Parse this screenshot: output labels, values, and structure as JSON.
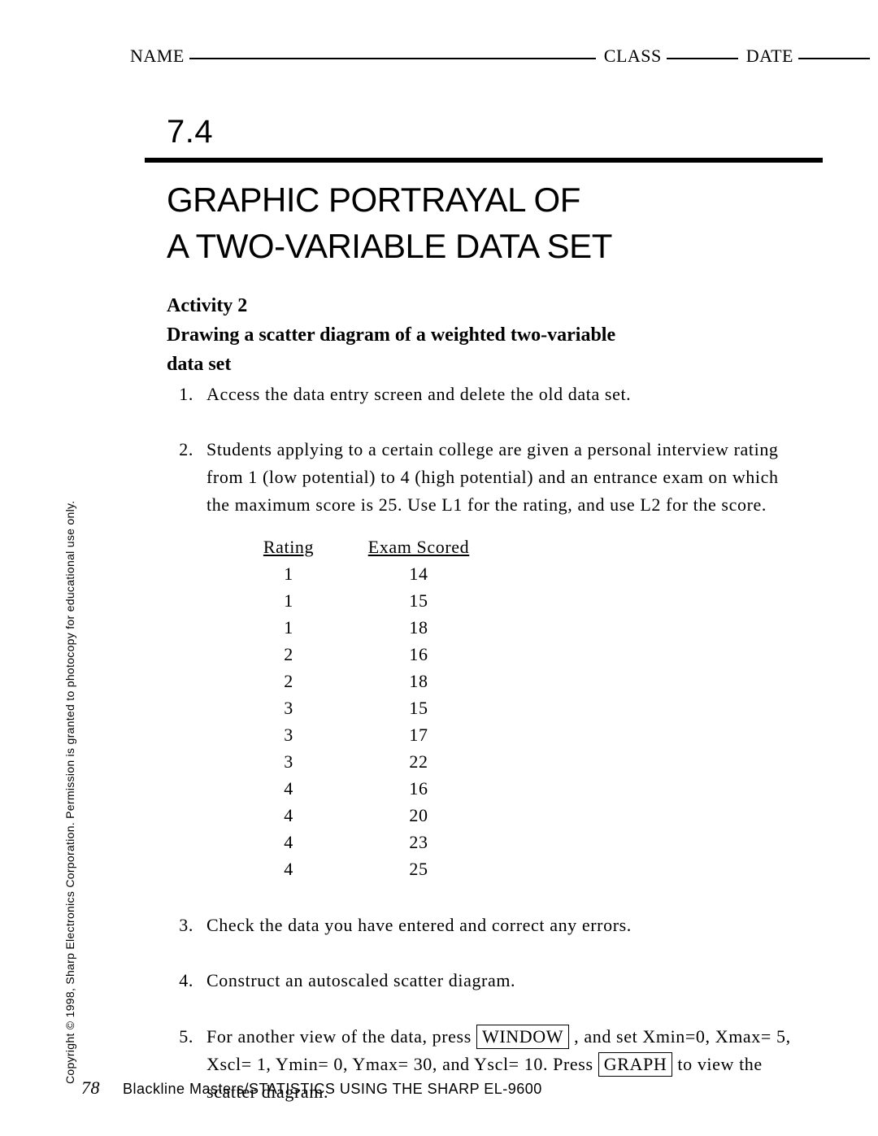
{
  "header": {
    "name_label": "NAME",
    "class_label": "CLASS",
    "date_label": "DATE"
  },
  "section_number": "7.4",
  "title_line1": "GRAPHIC PORTRAYAL OF",
  "title_line2": "A TWO-VARIABLE DATA SET",
  "activity": {
    "label": "Activity 2",
    "description": "Drawing a scatter diagram of a weighted two-variable data set"
  },
  "steps": {
    "s1": {
      "n": "1.",
      "text": "Access the data entry screen and delete the old data set."
    },
    "s2": {
      "n": "2.",
      "text": "Students applying to a certain college are given a personal interview rating from 1 (low potential) to 4 (high potential) and an entrance exam on which the maximum score is 25.  Use L1 for the rating, and use L2 for the score."
    },
    "s3": {
      "n": "3.",
      "text": "Check the data you have entered and correct any errors."
    },
    "s4": {
      "n": "4.",
      "text": "Construct an autoscaled scatter diagram."
    },
    "s5": {
      "n": "5.",
      "pre": "For another view of the data, press ",
      "key1": "WINDOW",
      "mid": " , and set Xmin=0, Xmax= 5, Xscl= 1, Ymin= 0, Ymax= 30, and Yscl= 10.  Press ",
      "key2": "GRAPH",
      "post": " to view the scatter diagram."
    }
  },
  "table": {
    "col_a_header": "Rating",
    "col_b_header": "Exam Scored",
    "rows": [
      {
        "a": "1",
        "b": "14"
      },
      {
        "a": "1",
        "b": "15"
      },
      {
        "a": "1",
        "b": "18"
      },
      {
        "a": "2",
        "b": "16"
      },
      {
        "a": "2",
        "b": "18"
      },
      {
        "a": "3",
        "b": "15"
      },
      {
        "a": "3",
        "b": "17"
      },
      {
        "a": "3",
        "b": "22"
      },
      {
        "a": "4",
        "b": "16"
      },
      {
        "a": "4",
        "b": "20"
      },
      {
        "a": "4",
        "b": "23"
      },
      {
        "a": "4",
        "b": "25"
      }
    ]
  },
  "copyright": "Copyright © 1998, Sharp Electronics Corporation. Permission is granted to photocopy for educational use only.",
  "footer": {
    "page": "78",
    "text": "Blackline Masters/STATISTICS USING THE SHARP EL-9600"
  }
}
